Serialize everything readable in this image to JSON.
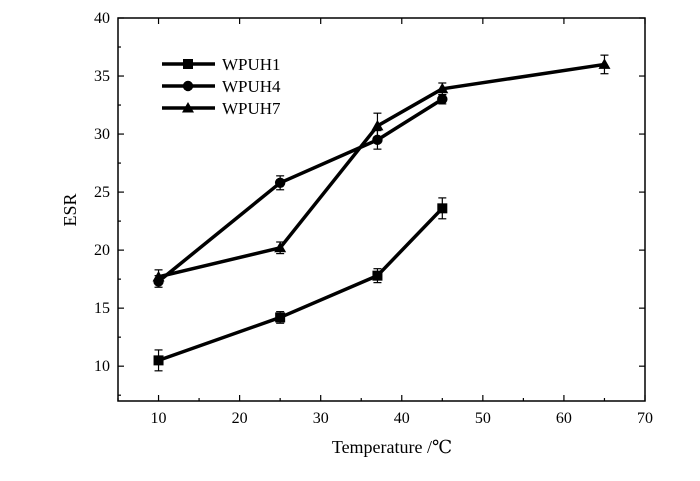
{
  "chart_data": {
    "type": "line",
    "xlabel": "Temperature /℃",
    "ylabel": "ESR",
    "xlim": [
      5,
      70
    ],
    "ylim": [
      7,
      40
    ],
    "xticks": [
      10,
      20,
      30,
      40,
      50,
      60,
      70
    ],
    "yticks": [
      10,
      15,
      20,
      25,
      30,
      35,
      40
    ],
    "grid": false,
    "legend_position": "top-left",
    "series": [
      {
        "name": "WPUH1",
        "marker": "square",
        "x": [
          10,
          25,
          37,
          45
        ],
        "y": [
          10.5,
          14.2,
          17.8,
          23.6
        ],
        "err": [
          0.9,
          0.5,
          0.6,
          0.9
        ]
      },
      {
        "name": "WPUH4",
        "marker": "circle",
        "x": [
          10,
          25,
          37,
          45
        ],
        "y": [
          17.3,
          25.8,
          29.5,
          33.0
        ],
        "err": [
          0.5,
          0.6,
          0.8,
          0.4
        ]
      },
      {
        "name": "WPUH7",
        "marker": "triangle",
        "x": [
          10,
          25,
          37,
          45,
          65
        ],
        "y": [
          17.7,
          20.2,
          30.7,
          33.9,
          36.0
        ],
        "err": [
          0.6,
          0.5,
          1.1,
          0.5,
          0.8
        ]
      }
    ]
  }
}
